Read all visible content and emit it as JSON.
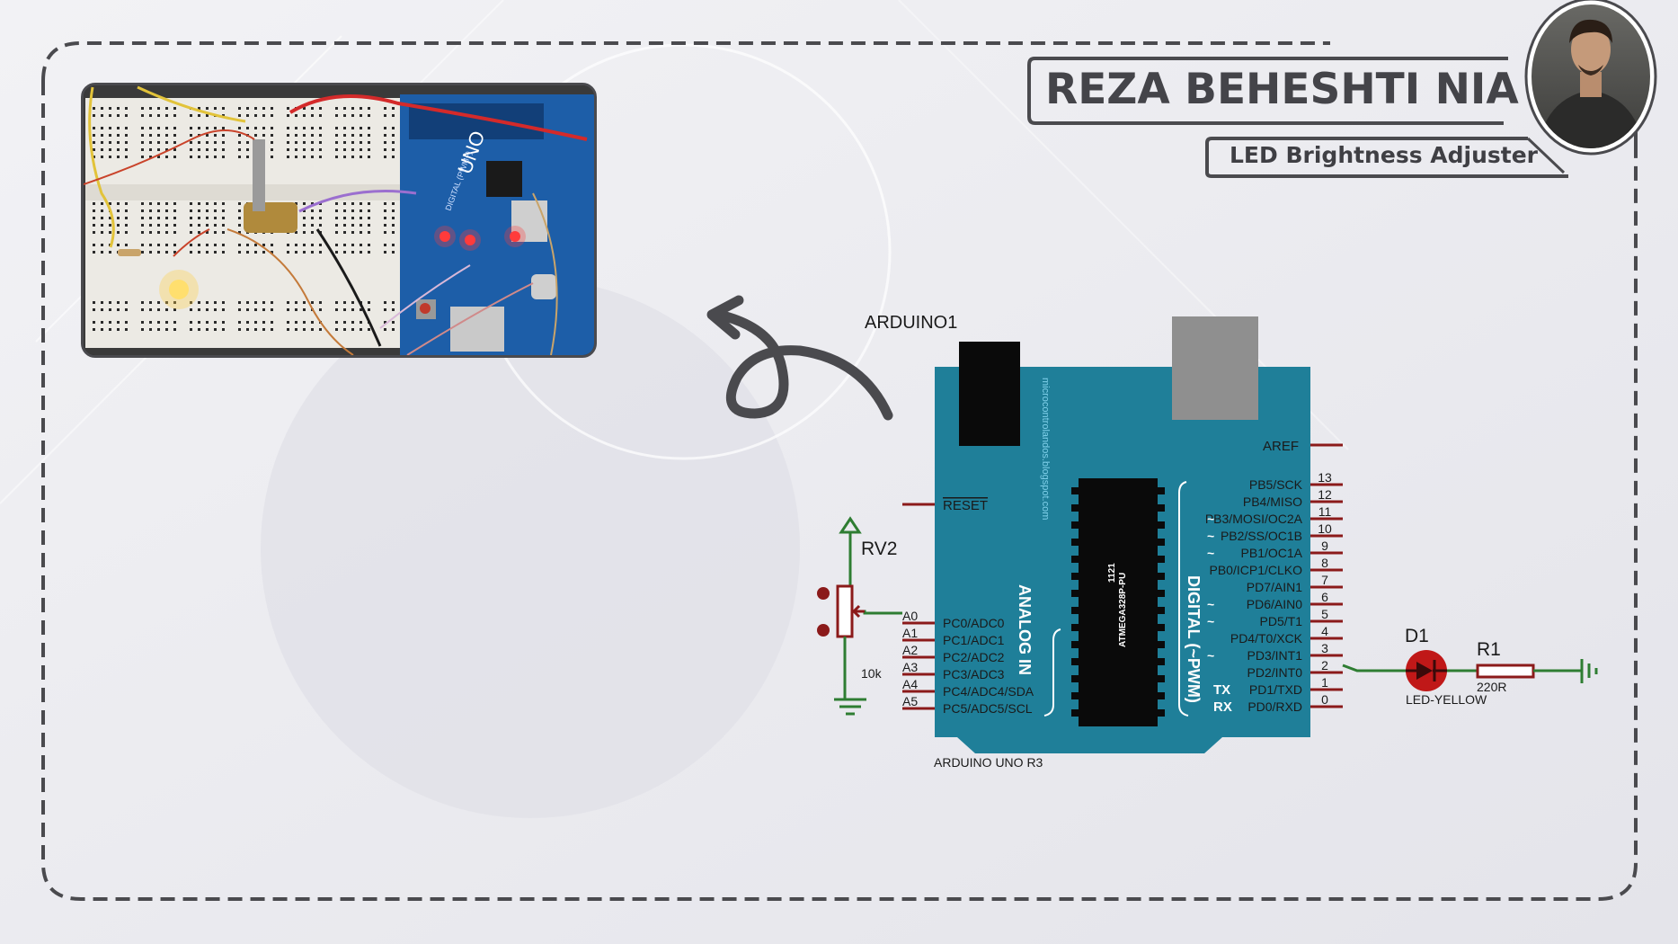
{
  "header": {
    "author_name": "REZA BEHESHTI NIA",
    "project_title": "LED Brightness Adjuster"
  },
  "photo": {
    "description_icon": "circuit-breadboard-photo",
    "board_label": "UNO",
    "board_silk": "DIGITAL (PWM~)"
  },
  "schematic": {
    "arduino_ref": "ARDUINO1",
    "arduino_value": "ARDUINO UNO R3",
    "chip_label": "ATMEGA328P-PU",
    "chip_sub": "1121",
    "side_text": "microcontrolandos.blogspot.com",
    "analog_group": "ANALOG IN",
    "digital_group": "DIGITAL (~PWM)",
    "reset": "RESET",
    "aref": "AREF",
    "analog_pins": [
      {
        "num": "A0",
        "name": "PC0/ADC0"
      },
      {
        "num": "A1",
        "name": "PC1/ADC1"
      },
      {
        "num": "A2",
        "name": "PC2/ADC2"
      },
      {
        "num": "A3",
        "name": "PC3/ADC3"
      },
      {
        "num": "A4",
        "name": "PC4/ADC4/SDA"
      },
      {
        "num": "A5",
        "name": "PC5/ADC5/SCL"
      }
    ],
    "digital_pins": [
      {
        "num": "13",
        "name": "PB5/SCK",
        "pre": ""
      },
      {
        "num": "12",
        "name": "PB4/MISO",
        "pre": ""
      },
      {
        "num": "11",
        "name": "PB3/MOSI/OC2A",
        "pre": "~"
      },
      {
        "num": "10",
        "name": "PB2/SS/OC1B",
        "pre": "~"
      },
      {
        "num": "9",
        "name": "PB1/OC1A",
        "pre": "~"
      },
      {
        "num": "8",
        "name": "PB0/ICP1/CLKO",
        "pre": ""
      },
      {
        "num": "7",
        "name": "PD7/AIN1",
        "pre": ""
      },
      {
        "num": "6",
        "name": "PD6/AIN0",
        "pre": "~"
      },
      {
        "num": "5",
        "name": "PD5/T1",
        "pre": "~"
      },
      {
        "num": "4",
        "name": "PD4/T0/XCK",
        "pre": ""
      },
      {
        "num": "3",
        "name": "PD3/INT1",
        "pre": "~"
      },
      {
        "num": "2",
        "name": "PD2/INT0",
        "pre": ""
      },
      {
        "num": "1",
        "name": "PD1/TXD",
        "pre": "TX"
      },
      {
        "num": "0",
        "name": "PD0/RXD",
        "pre": "RX"
      }
    ],
    "pot": {
      "ref": "RV2",
      "value": "10k"
    },
    "led": {
      "ref": "D1",
      "value": "LED-YELLOW"
    },
    "resistor": {
      "ref": "R1",
      "value": "220R"
    }
  },
  "colors": {
    "board": "#1f7f99",
    "wire": "#2e7d32",
    "pin": "#8b1a1a",
    "led": "#d32020",
    "frame": "#4a4a4e"
  }
}
